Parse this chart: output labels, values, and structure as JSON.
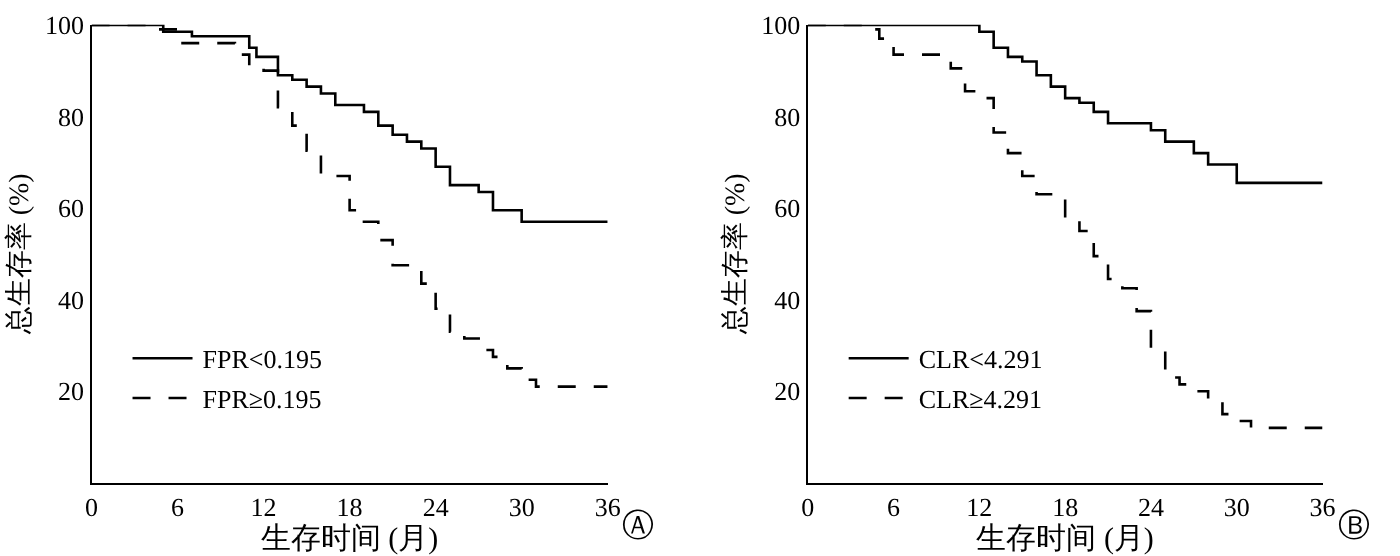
{
  "chart_data": [
    {
      "type": "step",
      "xlabel": "生存时间 (月)",
      "ylabel": "总生存率 (%)",
      "xlim": [
        0,
        36
      ],
      "ylim": [
        0,
        100
      ],
      "xticks": [
        0,
        6,
        12,
        18,
        24,
        30,
        36
      ],
      "yticks": [
        20,
        40,
        60,
        80,
        100
      ],
      "legend": "bottom left",
      "annotations": [
        "Ⓐ"
      ],
      "series": [
        {
          "name": "FPR<0.195",
          "color": "#000000",
          "line_style": "solid",
          "x": [
            0,
            5,
            7,
            11,
            11.5,
            13,
            14,
            15,
            16,
            17,
            19,
            20,
            21,
            22,
            23,
            24,
            25,
            27,
            28,
            30,
            36
          ],
          "values": [
            100,
            98.5,
            97.5,
            95,
            93,
            89,
            88,
            86.5,
            85,
            82.5,
            81,
            78,
            76,
            74.5,
            73,
            69,
            65,
            63.5,
            59.5,
            57,
            57
          ]
        },
        {
          "name": "FPR≥0.195",
          "color": "#000000",
          "line_style": "dashed",
          "x": [
            0,
            4,
            6,
            10,
            11,
            12,
            13,
            14,
            15,
            16,
            18,
            19,
            20,
            21,
            23,
            24,
            25,
            26,
            27,
            28,
            29,
            30,
            31,
            36
          ],
          "values": [
            100,
            99,
            96,
            93.5,
            91,
            90,
            82,
            78,
            72.5,
            67,
            59.5,
            57,
            53,
            47.5,
            43.5,
            38,
            33,
            31.5,
            29,
            27.5,
            25,
            22.5,
            21,
            21
          ]
        }
      ]
    },
    {
      "type": "step",
      "xlabel": "生存时间 (月)",
      "ylabel": "总生存率 (%)",
      "xlim": [
        0,
        36
      ],
      "ylim": [
        0,
        100
      ],
      "xticks": [
        0,
        6,
        12,
        18,
        24,
        30,
        36
      ],
      "yticks": [
        20,
        40,
        60,
        80,
        100
      ],
      "legend": "bottom left",
      "annotations": [
        "Ⓑ"
      ],
      "series": [
        {
          "name": "CLR<4.291",
          "color": "#000000",
          "line_style": "solid",
          "x": [
            0,
            12,
            13,
            14,
            15,
            16,
            17,
            18,
            19,
            20,
            21,
            24,
            25,
            27,
            28,
            30,
            36
          ],
          "values": [
            100,
            98.5,
            95,
            93,
            92,
            89,
            86.5,
            84,
            83,
            81,
            78.5,
            77,
            74.5,
            72,
            69.5,
            65.5,
            65.5
          ]
        },
        {
          "name": "CLR≥4.291",
          "color": "#000000",
          "line_style": "dashed",
          "x": [
            0,
            4,
            5,
            6,
            10,
            11,
            12,
            13,
            14,
            15,
            16,
            18,
            19,
            20,
            21,
            22,
            23,
            24,
            25,
            26,
            27,
            28,
            29,
            30,
            31,
            36
          ],
          "values": [
            100,
            99,
            97,
            93.5,
            90.5,
            85.5,
            84,
            76.5,
            72,
            67,
            63,
            57.5,
            55,
            49.5,
            44.5,
            42.5,
            37.5,
            29.5,
            23,
            21.5,
            20,
            18,
            15,
            13.5,
            12,
            12
          ]
        }
      ]
    }
  ]
}
